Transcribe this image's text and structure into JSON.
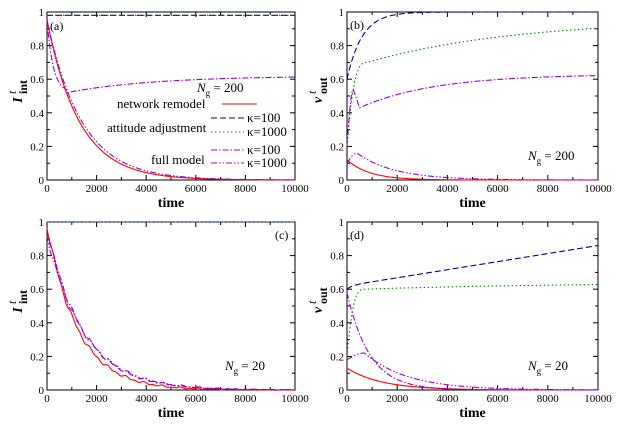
{
  "chart_data": [
    {
      "id": "a",
      "type": "line",
      "panel_label": "(a)",
      "xlabel": "time",
      "ylabel_main": "I",
      "ylabel_sub": "int",
      "ylabel_sup": "t",
      "xlim": [
        0,
        10000
      ],
      "ylim": [
        0,
        1
      ],
      "xticks": [
        "0",
        "2000",
        "4000",
        "6000",
        "8000",
        "10000"
      ],
      "yticks": [
        "0",
        "0.2",
        "0.4",
        "0.6",
        "0.8",
        "1"
      ],
      "annotation_main": "N",
      "annotation_sub": "g",
      "annotation_value": " = 200",
      "legend": {
        "group_labels": [
          "network remodel",
          "attitude adjustment",
          "full model"
        ],
        "entries": [
          "κ=100",
          "κ=1000",
          "κ=100",
          "κ=1000"
        ]
      },
      "series": [
        {
          "name": "network remodel",
          "style": "solid",
          "color": "#ff0000",
          "type": "decay",
          "start": 0.95,
          "tau": 1300,
          "end": 0.0
        },
        {
          "name": "attitude adjustment κ=100",
          "style": "dashed",
          "color": "#00008b",
          "type": "const",
          "value": 0.98
        },
        {
          "name": "attitude adjustment κ=1000",
          "style": "dotted",
          "color": "#008000",
          "type": "const",
          "value": 0.98
        },
        {
          "name": "full model κ=100",
          "style": "dashdot",
          "color": "#9400d3",
          "type": "dipRise",
          "start": 0.95,
          "tau": 250,
          "min": 0.52,
          "t_min": 800,
          "rise_end": 0.62,
          "rise_tau": 3500
        },
        {
          "name": "full model κ=1000",
          "style": "dashdotdot",
          "color": "#9400d3",
          "type": "decay",
          "start": 0.95,
          "tau": 1400,
          "end": 0.0
        }
      ]
    },
    {
      "id": "b",
      "type": "line",
      "panel_label": "(b)",
      "xlabel": "time",
      "ylabel_main": "v",
      "ylabel_sub": "out",
      "ylabel_sup": "t",
      "xlim": [
        0,
        10000
      ],
      "ylim": [
        0,
        1
      ],
      "xticks": [
        "0",
        "2000",
        "4000",
        "6000",
        "8000",
        "10000"
      ],
      "yticks": [
        "0",
        "0.2",
        "0.4",
        "0.6",
        "0.8",
        "1"
      ],
      "annotation_main": "N",
      "annotation_sub": "g",
      "annotation_value": " = 200",
      "series": [
        {
          "name": "network remodel",
          "style": "solid",
          "color": "#ff0000",
          "type": "decay",
          "start": 0.12,
          "tau": 900,
          "end": 0.0
        },
        {
          "name": "attitude adjustment κ=100",
          "style": "dashed",
          "color": "#00008b",
          "type": "rise",
          "start": 0.6,
          "tau": 600,
          "end": 1.0
        },
        {
          "name": "attitude adjustment κ=1000",
          "style": "dotted",
          "color": "#008000",
          "type": "sRise",
          "start": 0.2,
          "t_knee": 800,
          "knee": 0.7,
          "end": 0.96,
          "tau": 6000
        },
        {
          "name": "full model κ=100",
          "style": "dashdot",
          "color": "#9400d3",
          "type": "dipRise",
          "start": 0.2,
          "tau": 120,
          "min": 0.43,
          "t_min": 500,
          "peak": 0.54,
          "rise_end": 0.63,
          "rise_tau": 3000
        },
        {
          "name": "full model κ=1000",
          "style": "dashdotdot",
          "color": "#9400d3",
          "type": "humpDecay",
          "start": 0.1,
          "peak": 0.16,
          "t_peak": 400,
          "tau": 1500
        }
      ]
    },
    {
      "id": "c",
      "type": "line",
      "panel_label": "(c)",
      "xlabel": "time",
      "ylabel_main": "I",
      "ylabel_sub": "int",
      "ylabel_sup": "t",
      "xlim": [
        0,
        10000
      ],
      "ylim": [
        0,
        1
      ],
      "xticks": [
        "0",
        "2000",
        "4000",
        "6000",
        "8000",
        "10000"
      ],
      "yticks": [
        "0",
        "0.2",
        "0.4",
        "0.6",
        "0.8",
        "1"
      ],
      "annotation_main": "N",
      "annotation_sub": "g",
      "annotation_value": " = 20",
      "series": [
        {
          "name": "network remodel",
          "style": "solid",
          "color": "#ff0000",
          "type": "decay",
          "start": 0.98,
          "tau": 1250,
          "end": 0.0,
          "noise": 0.02
        },
        {
          "name": "attitude adjustment κ=100",
          "style": "dashed",
          "color": "#00008b",
          "type": "const",
          "value": 1.0
        },
        {
          "name": "attitude adjustment κ=1000",
          "style": "dotted",
          "color": "#008000",
          "type": "const",
          "value": 1.0
        },
        {
          "name": "full model κ=100",
          "style": "dashdot",
          "color": "#9400d3",
          "type": "decay",
          "start": 0.96,
          "tau": 1450,
          "end": 0.0,
          "noise": 0.02
        },
        {
          "name": "full model κ=1000",
          "style": "dashdotdot",
          "color": "#9400d3",
          "type": "decay",
          "start": 0.92,
          "tau": 1500,
          "end": 0.0,
          "noise": 0.02
        }
      ]
    },
    {
      "id": "d",
      "type": "line",
      "panel_label": "(d)",
      "xlabel": "time",
      "ylabel_main": "v",
      "ylabel_sub": "out",
      "ylabel_sup": "t",
      "xlim": [
        0,
        10000
      ],
      "ylim": [
        0,
        1
      ],
      "xticks": [
        "0",
        "2000",
        "4000",
        "6000",
        "8000",
        "10000"
      ],
      "yticks": [
        "0",
        "0.2",
        "0.4",
        "0.6",
        "0.8",
        "1"
      ],
      "annotation_main": "N",
      "annotation_sub": "g",
      "annotation_value": " = 20",
      "series": [
        {
          "name": "network remodel",
          "style": "solid",
          "color": "#ff0000",
          "type": "decay",
          "start": 0.13,
          "tau": 1400,
          "end": 0.0
        },
        {
          "name": "attitude adjustment κ=100",
          "style": "dashed",
          "color": "#00008b",
          "type": "lin",
          "start": 0.6,
          "end": 0.86,
          "jump": 0.02
        },
        {
          "name": "attitude adjustment κ=1000",
          "style": "dotted",
          "color": "#008000",
          "type": "sRise",
          "start": 0.2,
          "t_knee": 700,
          "knee": 0.6,
          "end": 0.64,
          "tau": 8000
        },
        {
          "name": "full model κ=100",
          "style": "dashdot",
          "color": "#9400d3",
          "type": "decay",
          "start": 0.58,
          "tau": 900,
          "end": 0.0
        },
        {
          "name": "full model κ=1000",
          "style": "dashdotdot",
          "color": "#9400d3",
          "type": "humpDecay",
          "start": 0.18,
          "peak": 0.22,
          "t_peak": 700,
          "tau": 1700
        }
      ]
    }
  ]
}
